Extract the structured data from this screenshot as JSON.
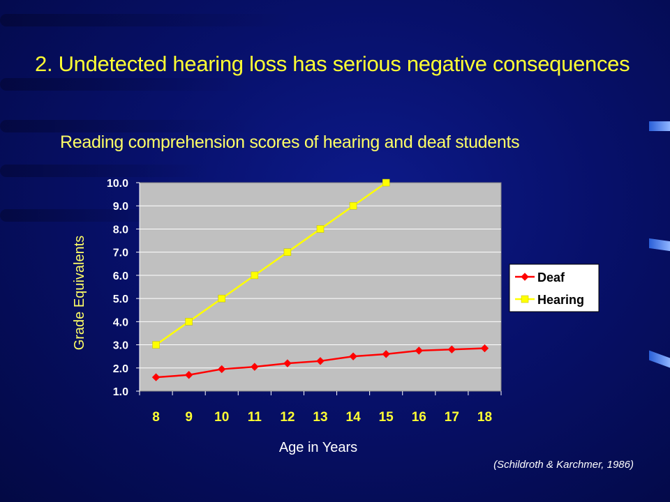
{
  "slide": {
    "title": "2. Undetected hearing loss has serious negative consequences",
    "citation": "(Schildroth & Karchmer, 1986)"
  },
  "colors": {
    "background": "#07106a",
    "title": "#ffff33",
    "plot_area": "#c0c0c0",
    "deaf": "#ff0000",
    "hearing": "#ffff00"
  },
  "chart_data": {
    "type": "line",
    "title": "Reading comprehension scores of hearing and deaf students",
    "xlabel": "Age in Years",
    "ylabel": "Grade Equivalents",
    "categories": [
      "8",
      "9",
      "10",
      "11",
      "12",
      "13",
      "14",
      "15",
      "16",
      "17",
      "18"
    ],
    "ylim": [
      1.0,
      10.0
    ],
    "yticks": [
      "1.0",
      "2.0",
      "3.0",
      "4.0",
      "5.0",
      "6.0",
      "7.0",
      "8.0",
      "9.0",
      "10.0"
    ],
    "grid": true,
    "legend": "right",
    "series": [
      {
        "name": "Deaf",
        "color": "#ff0000",
        "marker": "diamond",
        "values": [
          1.6,
          1.7,
          1.95,
          2.05,
          2.2,
          2.3,
          2.5,
          2.6,
          2.75,
          2.8,
          2.85
        ]
      },
      {
        "name": "Hearing",
        "color": "#ffff00",
        "marker": "square",
        "values": [
          3.0,
          4.0,
          5.0,
          6.0,
          7.0,
          8.0,
          9.0,
          10.0,
          null,
          null,
          null
        ]
      }
    ]
  }
}
